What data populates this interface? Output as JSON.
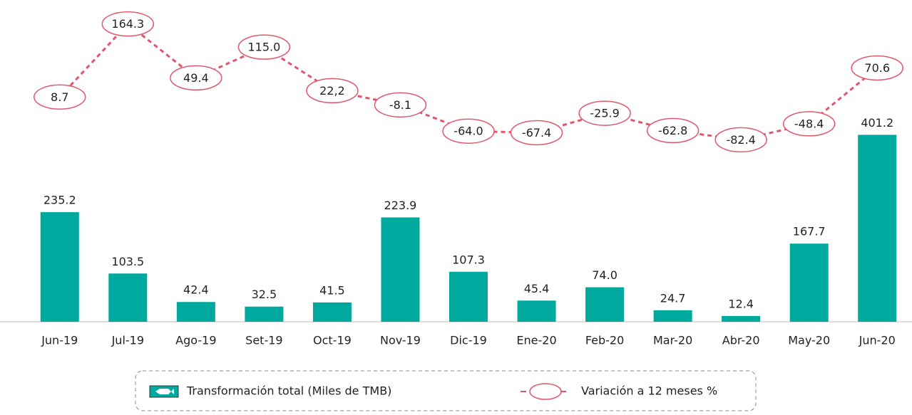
{
  "chart_data": {
    "type": "bar-line",
    "categories": [
      "Jun-19",
      "Jul-19",
      "Ago-19",
      "Set-19",
      "Oct-19",
      "Nov-19",
      "Dic-19",
      "Ene-20",
      "Feb-20",
      "Mar-20",
      "Abr-20",
      "May-20",
      "Jun-20"
    ],
    "series": [
      {
        "name": "Transformación total (Miles de TMB)",
        "color": "#00a99d",
        "type": "bar",
        "values": [
          235.2,
          103.5,
          42.4,
          32.5,
          41.5,
          223.9,
          107.3,
          45.4,
          74.0,
          24.7,
          12.4,
          167.7,
          401.2
        ],
        "value_labels": [
          "235.2",
          "103.5",
          "42.4",
          "32.5",
          "41.5",
          "223.9",
          "107.3",
          "45.4",
          "74.0",
          "24.7",
          "12.4",
          "167.7",
          "401.2"
        ]
      },
      {
        "name": "Variación a 12 meses %",
        "color": "#e0566a",
        "type": "line",
        "axis": "y2",
        "values": [
          8.7,
          164.3,
          49.4,
          115.0,
          22.2,
          -8.1,
          -64.0,
          -67.4,
          -25.9,
          -62.8,
          -82.4,
          -48.4,
          70.6
        ],
        "value_labels": [
          "8.7",
          "164.3",
          "49.4",
          "115.0",
          "22,2",
          "-8.1",
          "-64.0",
          "-67.4",
          "-25.9",
          "-62.8",
          "-82.4",
          "-48.4",
          "70.6"
        ]
      }
    ],
    "ylim": [
      0,
      660
    ],
    "y2lim": [
      -470,
      185
    ]
  }
}
